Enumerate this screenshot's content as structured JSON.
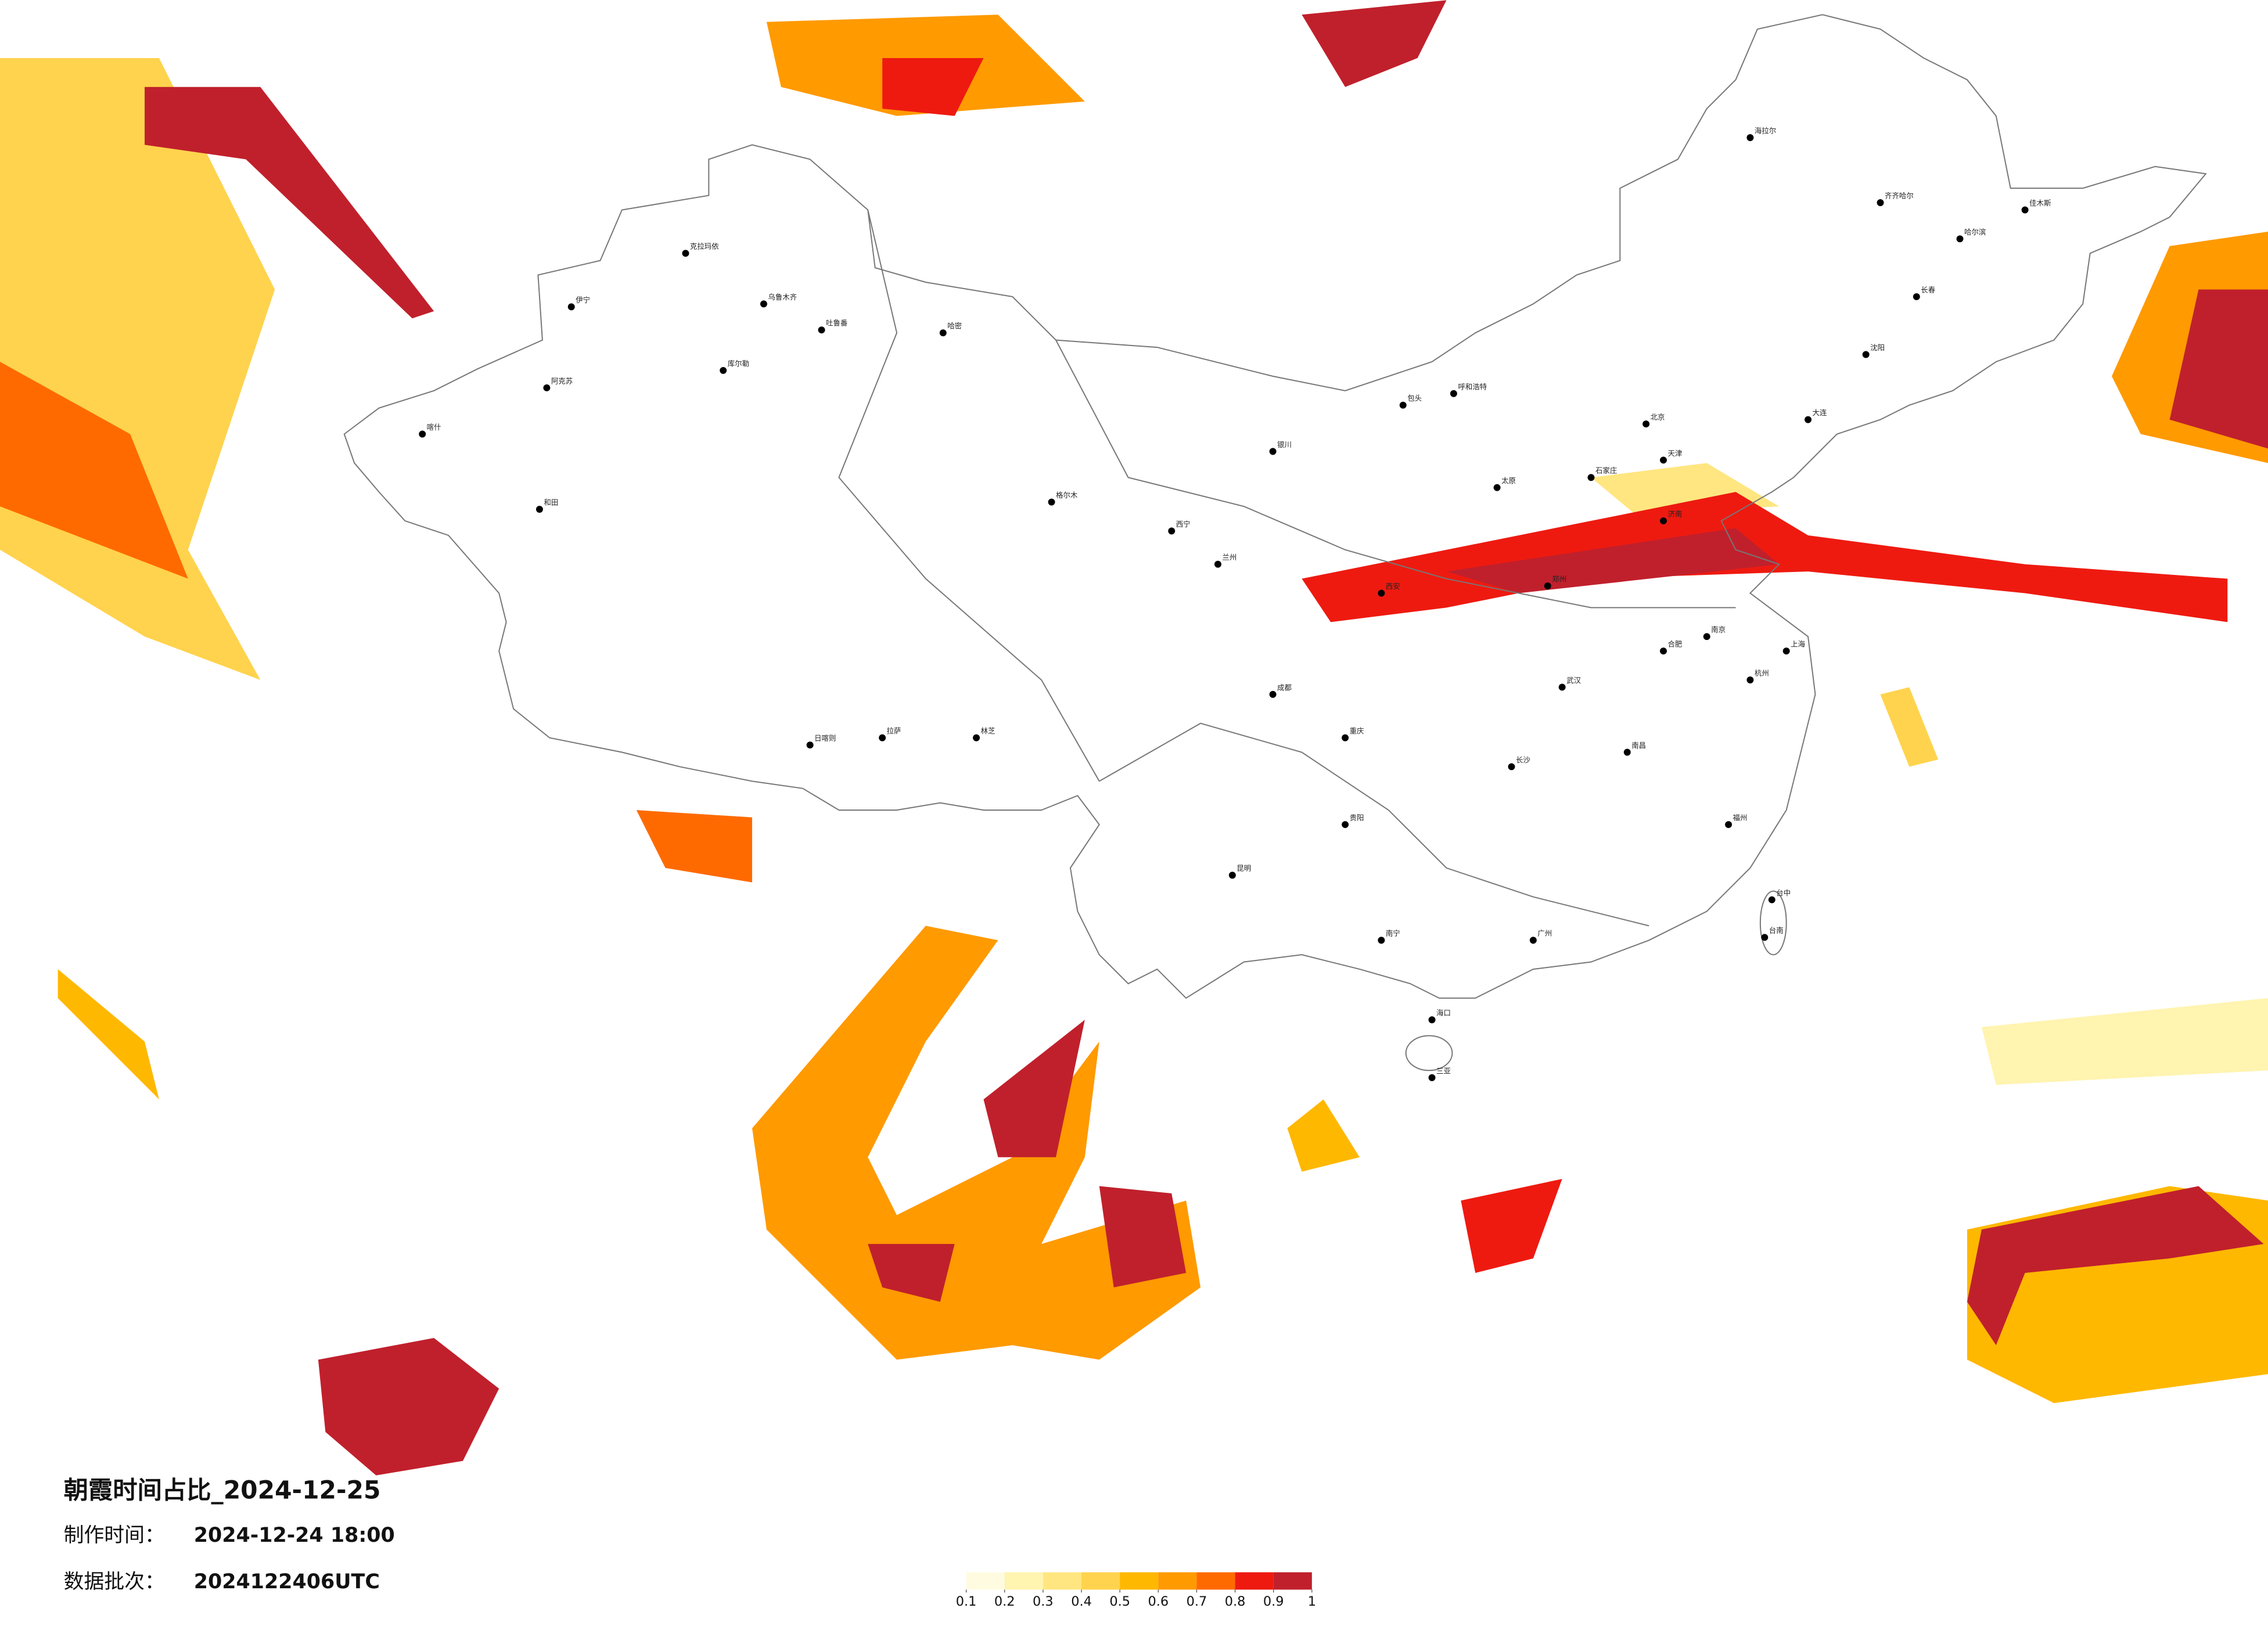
{
  "title": "朝霞时间占比_2024-12-25",
  "made_label": "制作时间：",
  "made_time": "2024-12-24 18:00",
  "batch_label": "数据批次：",
  "batch": "2024122406UTC",
  "colorbar": {
    "ticks": [
      0.1,
      0.2,
      0.3,
      0.4,
      0.5,
      0.6,
      0.7,
      0.8,
      0.9,
      1
    ],
    "colors": [
      "#fffbe0",
      "#fff4b0",
      "#ffe680",
      "#ffd34d",
      "#ffb800",
      "#ff9a00",
      "#ff6a00",
      "#ee1a10",
      "#c0202c"
    ]
  },
  "cities": [
    "克拉玛依",
    "伊宁",
    "乌鲁木齐",
    "吐鲁番",
    "哈密",
    "阿克苏",
    "喀什",
    "和田",
    "库尔勒",
    "格尔木",
    "西宁",
    "兰州",
    "银川",
    "呼和浩特",
    "包头",
    "北京",
    "天津",
    "石家庄",
    "太原",
    "济南",
    "郑州",
    "西安",
    "成都",
    "重庆",
    "贵阳",
    "昆明",
    "南宁",
    "广州",
    "海口",
    "三亚",
    "长沙",
    "武汉",
    "南昌",
    "杭州",
    "上海",
    "南京",
    "合肥",
    "福州",
    "台中",
    "台南",
    "拉萨",
    "日喀则",
    "林芝",
    "哈尔滨",
    "长春",
    "沈阳",
    "大连",
    "齐齐哈尔",
    "海拉尔",
    "佳木斯"
  ]
}
